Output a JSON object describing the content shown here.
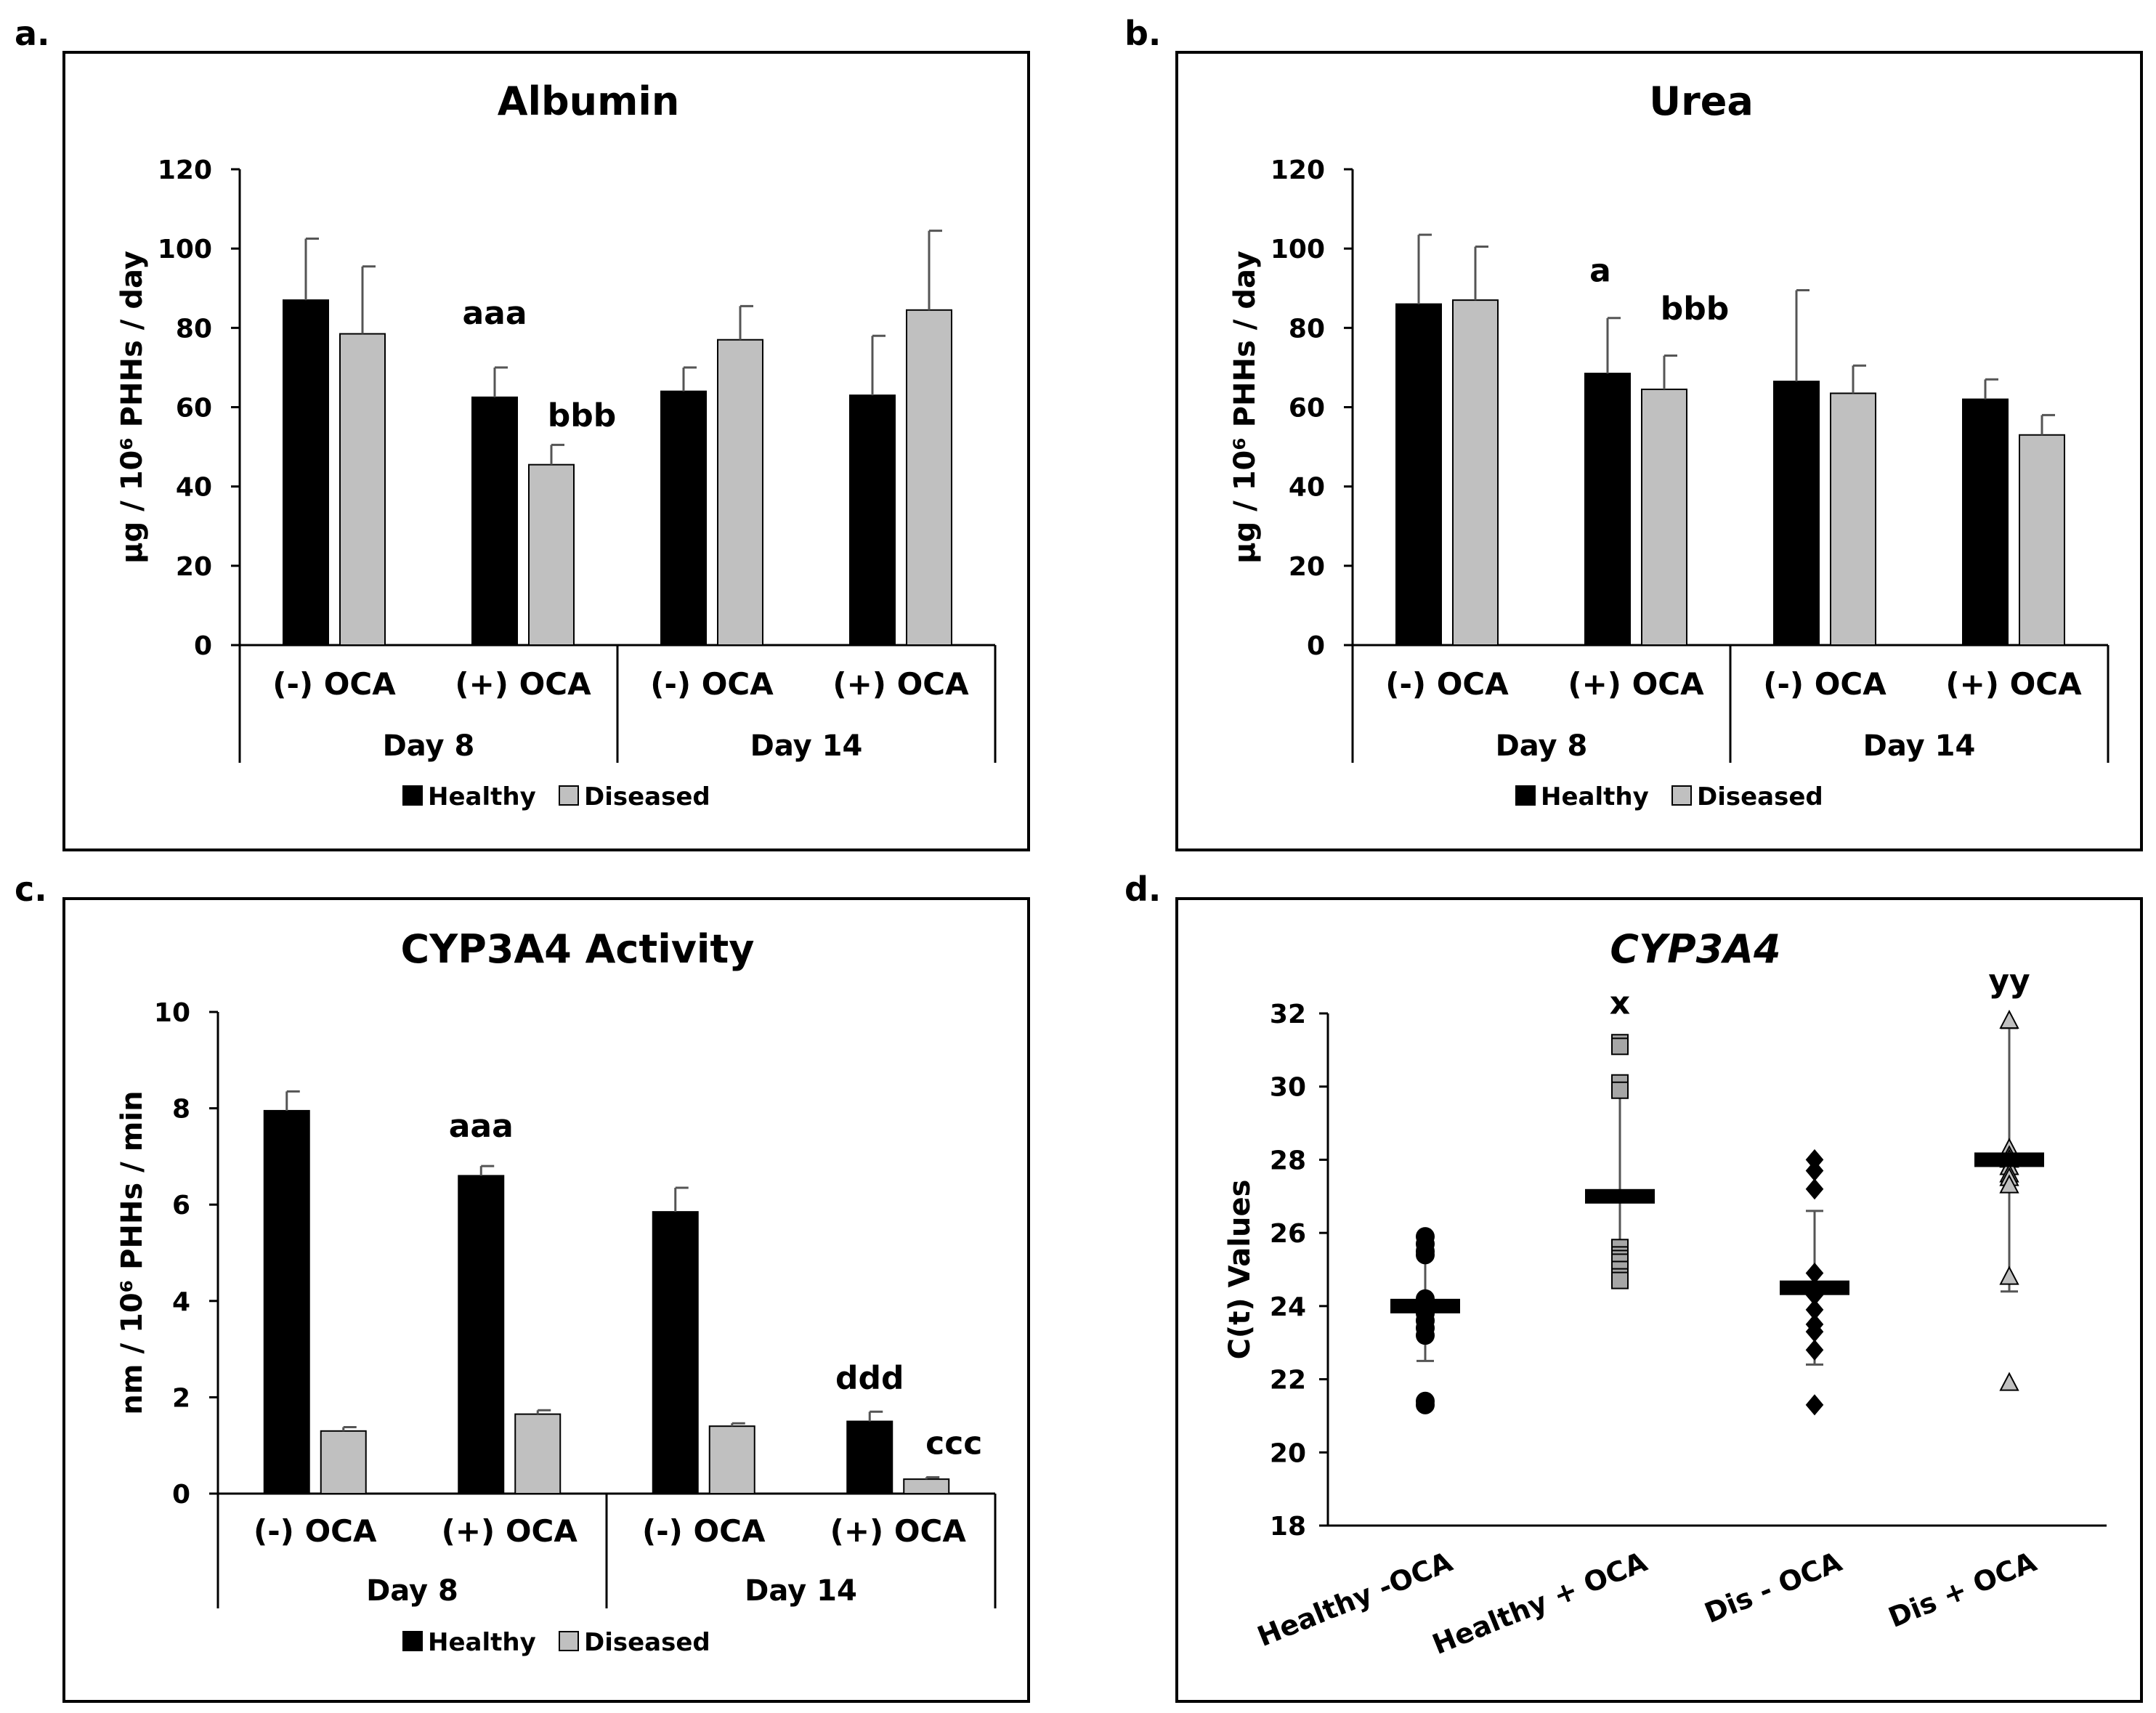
{
  "panels": {
    "a": {
      "label": "a."
    },
    "b": {
      "label": "b."
    },
    "c": {
      "label": "c."
    },
    "d": {
      "label": "d."
    }
  },
  "colors": {
    "healthy": "#000000",
    "diseased": "#c0c0c0",
    "errbar": "#555555",
    "frame": "#000000"
  },
  "chart_data": [
    {
      "type": "bar",
      "title": "Albumin",
      "ylabel": "µg / 10⁶ PHHs / day",
      "ylim": [
        0,
        120
      ],
      "yticks": [
        "0",
        "20",
        "40",
        "60",
        "80",
        "100",
        "120"
      ],
      "categories": [
        "(-) OCA",
        "(+) OCA",
        "(-) OCA",
        "(+) OCA"
      ],
      "groups": [
        "Day 8",
        "Day 14"
      ],
      "series": [
        {
          "name": "Healthy",
          "values": [
            87,
            62.5,
            64,
            63
          ],
          "errors": [
            15.5,
            7.5,
            6,
            15
          ]
        },
        {
          "name": "Diseased",
          "values": [
            78.5,
            45.5,
            77,
            84.5
          ],
          "errors": [
            17,
            5,
            8.5,
            20
          ]
        }
      ],
      "annotations": [
        {
          "text": "aaa",
          "category": 1,
          "series": 0
        },
        {
          "text": "bbb",
          "category": 1,
          "series": 1
        }
      ],
      "legend": [
        "Healthy",
        "Diseased"
      ],
      "legend_position": "bottom"
    },
    {
      "type": "bar",
      "title": "Urea",
      "ylabel": "µg / 10⁶ PHHs / day",
      "ylim": [
        0,
        120
      ],
      "yticks": [
        "0",
        "20",
        "40",
        "60",
        "80",
        "100",
        "120"
      ],
      "categories": [
        "(-) OCA",
        "(+) OCA",
        "(-) OCA",
        "(+) OCA"
      ],
      "groups": [
        "Day 8",
        "Day 14"
      ],
      "series": [
        {
          "name": "Healthy",
          "values": [
            86,
            68.5,
            66.5,
            62
          ],
          "errors": [
            17.5,
            14,
            23,
            5
          ]
        },
        {
          "name": "Diseased",
          "values": [
            87,
            64.5,
            63.5,
            53
          ],
          "errors": [
            13.5,
            8.5,
            7,
            5
          ]
        }
      ],
      "annotations": [
        {
          "text": "a",
          "category": 1,
          "series": 0
        },
        {
          "text": "bbb",
          "category": 1,
          "series": 1
        }
      ],
      "legend": [
        "Healthy",
        "Diseased"
      ],
      "legend_position": "bottom"
    },
    {
      "type": "bar",
      "title": "CYP3A4 Activity",
      "ylabel": "nm / 10⁶ PHHs / min",
      "ylim": [
        0,
        10
      ],
      "yticks": [
        "0",
        "2",
        "4",
        "6",
        "8",
        "10"
      ],
      "categories": [
        "(-) OCA",
        "(+) OCA",
        "(-) OCA",
        "(+) OCA"
      ],
      "groups": [
        "Day 8",
        "Day 14"
      ],
      "series": [
        {
          "name": "Healthy",
          "values": [
            7.95,
            6.6,
            5.85,
            1.5
          ],
          "errors": [
            0.4,
            0.2,
            0.5,
            0.2
          ]
        },
        {
          "name": "Diseased",
          "values": [
            1.3,
            1.65,
            1.4,
            0.3
          ],
          "errors": [
            0.08,
            0.08,
            0.06,
            0.04
          ]
        }
      ],
      "annotations": [
        {
          "text": "aaa",
          "category": 1,
          "series": 0
        },
        {
          "text": "ddd",
          "category": 3,
          "series": 0
        },
        {
          "text": "ccc",
          "category": 3,
          "series": 1
        }
      ],
      "legend": [
        "Healthy",
        "Diseased"
      ],
      "legend_position": "bottom"
    },
    {
      "type": "scatter",
      "title": "CYP3A4",
      "ylabel": "C(t) Values",
      "ylim": [
        18,
        32
      ],
      "yticks": [
        "18",
        "20",
        "22",
        "24",
        "26",
        "28",
        "30",
        "32"
      ],
      "categories": [
        "Healthy -OCA",
        "Healthy + OCA",
        "Dis - OCA",
        "Dis + OCA"
      ],
      "series": [
        {
          "name": "Healthy -OCA",
          "marker": "circle",
          "fill": "#000000",
          "points": [
            25.9,
            25.7,
            25.5,
            25.4,
            24.2,
            24.0,
            23.8,
            23.6,
            23.4,
            23.2,
            21.4,
            21.3
          ],
          "mean": 24.0,
          "whisker": [
            22.5,
            25.5
          ]
        },
        {
          "name": "Healthy + OCA",
          "marker": "square",
          "fill": "#a6a6a6",
          "points": [
            31.2,
            31.1,
            30.1,
            29.9,
            25.6,
            25.4,
            25.3,
            25.2,
            25.0,
            24.8,
            24.7
          ],
          "mean": 27.0,
          "whisker": [
            24.6,
            29.7
          ]
        },
        {
          "name": "Dis - OCA",
          "marker": "diamond",
          "fill": "#000000",
          "points": [
            28.0,
            27.7,
            27.2,
            24.9,
            24.3,
            23.9,
            23.5,
            23.3,
            22.8,
            21.3
          ],
          "mean": 24.5,
          "whisker": [
            22.4,
            26.6
          ]
        },
        {
          "name": "Dis + OCA",
          "marker": "triangle",
          "fill": "#c0c0c0",
          "points": [
            31.8,
            28.3,
            28.1,
            28.0,
            27.8,
            27.6,
            27.5,
            27.3,
            24.8,
            21.9
          ],
          "mean": 28.0,
          "whisker": [
            24.4,
            31.6
          ]
        }
      ],
      "annotations": [
        {
          "text": "x",
          "category": 1
        },
        {
          "text": "yy",
          "category": 3
        }
      ]
    }
  ]
}
